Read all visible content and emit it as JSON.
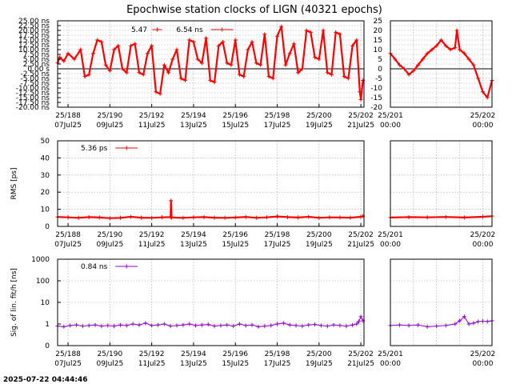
{
  "chart_data": {
    "title": "Epochwise station clocks of LIGN (40321 epochs)",
    "timestamp": "2025-07-22 04:44:46",
    "colors": {
      "clock": "#ff0000",
      "rms": "#ff0000",
      "sig": "#9400d3",
      "zero_line": "#000000"
    },
    "date_ticks_main": [
      {
        "x": 188,
        "top": "25/188",
        "bottom": "07Jul25"
      },
      {
        "x": 190,
        "top": "25/190",
        "bottom": "09Jul25"
      },
      {
        "x": 192,
        "top": "25/192",
        "bottom": "11Jul25"
      },
      {
        "x": 194,
        "top": "25/194",
        "bottom": "13Jul25"
      },
      {
        "x": 196,
        "top": "25/196",
        "bottom": "15Jul25"
      },
      {
        "x": 198,
        "top": "25/198",
        "bottom": "17Jul25"
      },
      {
        "x": 200,
        "top": "25/200",
        "bottom": "19Jul25"
      },
      {
        "x": 202,
        "top": "25/202",
        "bottom": "21Jul25"
      }
    ],
    "date_ticks_zoom": [
      {
        "x": 201,
        "top": "25/201",
        "bottom": "00:00"
      },
      {
        "x": 202,
        "top": "25/202",
        "bottom": "00:00"
      }
    ],
    "panels": [
      {
        "type": "line",
        "ylabel": "",
        "yscale": "linear",
        "ylim": [
          -20,
          25
        ],
        "ytick_values": [
          -20,
          -17.5,
          -15,
          -12.5,
          -10,
          -7.5,
          -5,
          -2.5,
          0,
          2.5,
          5,
          7.5,
          10,
          12.5,
          15,
          17.5,
          20,
          22.5,
          25
        ],
        "ytick_labels": [
          "-20.00 ns",
          "-17.50 ns",
          "-15.00 ns",
          "-12.50 ns",
          "-10.00 ns",
          "-7.50 ns",
          "-5.00 ns",
          "-2.50 ns",
          "0.00 s",
          "2.50 ns",
          "5.00 ns",
          "7.50 ns",
          "10.00 ns",
          "12.50 ns",
          "15.00 ns",
          "17.50 ns",
          "20.00 ns",
          "22.50 ns",
          "25.00 ns"
        ],
        "zoom_ytick_values": [
          -20,
          -15,
          -10,
          -5,
          0,
          5,
          10,
          15,
          20,
          25
        ],
        "zoom_ytick_labels": [
          "-20",
          "-15",
          "-10",
          "-5",
          "0",
          "5",
          "10",
          "15",
          "20",
          "25"
        ],
        "legend": [
          {
            "text": "5.47"
          },
          {
            "text": "6.54 ns"
          }
        ],
        "color": "clock",
        "series_x": [
          187.5,
          187.6,
          187.8,
          188.0,
          188.3,
          188.6,
          188.8,
          189.0,
          189.2,
          189.4,
          189.6,
          189.8,
          190.0,
          190.2,
          190.4,
          190.6,
          190.8,
          191.0,
          191.2,
          191.4,
          191.6,
          191.8,
          192.0,
          192.2,
          192.4,
          192.6,
          192.8,
          193.0,
          193.2,
          193.4,
          193.6,
          193.8,
          194.0,
          194.2,
          194.4,
          194.6,
          194.8,
          195.0,
          195.2,
          195.4,
          195.6,
          195.8,
          196.0,
          196.2,
          196.4,
          196.6,
          196.8,
          197.0,
          197.2,
          197.4,
          197.6,
          197.8,
          198.0,
          198.2,
          198.4,
          198.6,
          198.8,
          199.0,
          199.2,
          199.4,
          199.6,
          199.8,
          200.0,
          200.2,
          200.4,
          200.6,
          200.8,
          201.0,
          201.2,
          201.4,
          201.6,
          201.8,
          201.95,
          202.0,
          202.1
        ],
        "series_y": [
          3,
          6,
          4,
          8,
          5,
          10,
          -4,
          -3,
          8,
          15,
          14,
          2,
          -1,
          10,
          12,
          0,
          -2,
          12,
          13,
          -2,
          -3,
          8,
          12,
          -12,
          -13,
          2,
          -2,
          5,
          10,
          -5,
          -6,
          15,
          14,
          5,
          3,
          16,
          -6,
          -7,
          12,
          14,
          3,
          2,
          15,
          -3,
          -4,
          10,
          14,
          3,
          2,
          18,
          -4,
          -5,
          17,
          22,
          2,
          8,
          13,
          -2,
          0,
          20,
          19,
          6,
          5,
          20,
          -2,
          -3,
          19,
          18,
          -4,
          -5,
          12,
          15,
          -12,
          -16,
          -6
        ],
        "zoom_x": [
          201.0,
          201.05,
          201.1,
          201.15,
          201.2,
          201.25,
          201.3,
          201.35,
          201.4,
          201.45,
          201.5,
          201.55,
          201.6,
          201.65,
          201.7,
          201.72,
          201.75,
          201.8,
          201.85,
          201.9,
          201.95,
          202.0,
          202.05,
          202.1
        ],
        "zoom_y": [
          8,
          5,
          2,
          0,
          -3,
          -1,
          2,
          5,
          8,
          10,
          12,
          15,
          12,
          10,
          11,
          20,
          10,
          8,
          5,
          2,
          -5,
          -12,
          -15,
          -6
        ]
      },
      {
        "type": "line",
        "ylabel": "RMS [ps]",
        "yscale": "linear",
        "ylim": [
          0,
          50
        ],
        "ytick_values": [
          0,
          10,
          20,
          30,
          40,
          50
        ],
        "ytick_labels": [
          "0",
          "10",
          "20",
          "30",
          "40",
          "50"
        ],
        "legend": [
          {
            "text": "5.36 ps"
          }
        ],
        "color": "rms",
        "series_x": [
          187.5,
          188.0,
          188.5,
          189.0,
          189.5,
          190.0,
          190.5,
          191.0,
          191.5,
          192.0,
          192.5,
          192.9,
          192.92,
          192.95,
          193.5,
          194.0,
          194.5,
          195.0,
          195.5,
          196.0,
          196.5,
          197.0,
          197.5,
          198.0,
          198.5,
          199.0,
          199.5,
          200.0,
          200.5,
          201.0,
          201.5,
          202.0,
          202.1
        ],
        "series_y": [
          5.5,
          5.3,
          5.0,
          5.4,
          5.2,
          4.8,
          5.0,
          5.6,
          5.1,
          5.0,
          5.3,
          5.4,
          15.0,
          5.2,
          5.0,
          5.3,
          5.4,
          5.1,
          5.0,
          5.2,
          5.5,
          5.0,
          5.3,
          5.8,
          5.4,
          5.2,
          5.6,
          5.0,
          5.3,
          5.2,
          5.1,
          5.6,
          6.0
        ],
        "zoom_x": [
          201.0,
          201.2,
          201.4,
          201.6,
          201.8,
          202.0,
          202.1
        ],
        "zoom_y": [
          5.2,
          5.4,
          5.3,
          5.5,
          5.2,
          5.6,
          6.0
        ]
      },
      {
        "type": "scatter",
        "ylabel": "Sig. of lin. fit/h [ns]",
        "yscale": "log",
        "ylim": [
          0.1,
          1000
        ],
        "ytick_values": [
          0.1,
          1,
          10,
          100,
          1000
        ],
        "ytick_labels": [
          "0",
          "1",
          "10",
          "100",
          "1000"
        ],
        "legend": [
          {
            "text": "0.84 ns"
          }
        ],
        "color": "sig",
        "series_x": [
          187.5,
          187.8,
          188.1,
          188.4,
          188.7,
          189.0,
          189.3,
          189.6,
          189.9,
          190.2,
          190.5,
          190.8,
          191.1,
          191.4,
          191.7,
          192.0,
          192.3,
          192.6,
          192.9,
          193.2,
          193.5,
          193.8,
          194.1,
          194.4,
          194.7,
          195.0,
          195.3,
          195.6,
          195.9,
          196.2,
          196.5,
          196.8,
          197.1,
          197.4,
          197.7,
          198.0,
          198.3,
          198.6,
          198.9,
          199.2,
          199.5,
          199.8,
          200.1,
          200.4,
          200.7,
          201.0,
          201.3,
          201.6,
          201.8,
          201.9,
          202.0,
          202.1
        ],
        "series_y": [
          0.8,
          0.75,
          0.85,
          0.9,
          0.8,
          0.85,
          0.9,
          0.8,
          0.85,
          0.8,
          0.9,
          0.85,
          1.0,
          0.9,
          1.1,
          0.85,
          0.9,
          1.0,
          0.8,
          0.85,
          0.9,
          1.0,
          0.85,
          0.9,
          0.95,
          0.8,
          0.85,
          0.9,
          0.8,
          1.0,
          0.85,
          0.9,
          0.75,
          0.8,
          0.85,
          1.0,
          1.1,
          0.9,
          0.85,
          0.8,
          0.9,
          0.95,
          0.85,
          0.8,
          0.9,
          0.85,
          0.8,
          0.9,
          1.0,
          1.3,
          2.2,
          1.4
        ],
        "zoom_x": [
          201.0,
          201.1,
          201.2,
          201.3,
          201.4,
          201.5,
          201.6,
          201.7,
          201.75,
          201.8,
          201.85,
          201.9,
          201.95,
          202.0,
          202.05,
          202.1
        ],
        "zoom_y": [
          0.85,
          0.9,
          0.85,
          0.9,
          0.75,
          0.8,
          0.85,
          1.0,
          1.4,
          2.2,
          1.0,
          1.1,
          1.3,
          1.35,
          1.3,
          1.4
        ]
      }
    ]
  }
}
